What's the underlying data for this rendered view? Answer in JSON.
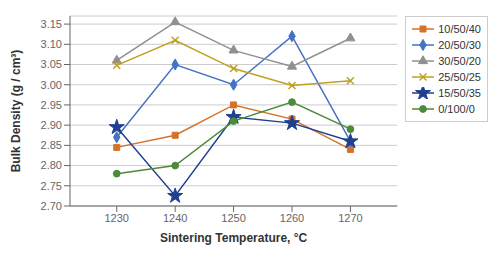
{
  "chart_data": {
    "type": "line",
    "xlabel": "Sintering Temperature, °C",
    "ylabel": "Bulk Density (g / cm³)",
    "x": [
      1230,
      1240,
      1250,
      1260,
      1270
    ],
    "series": [
      {
        "name": "10/50/40",
        "color": "#D4722A",
        "marker": "square",
        "values": [
          2.845,
          2.875,
          2.95,
          2.915,
          2.84
        ]
      },
      {
        "name": "20/50/30",
        "color": "#4472C4",
        "marker": "diamond",
        "values": [
          2.87,
          3.05,
          3.0,
          3.12,
          2.86
        ]
      },
      {
        "name": "30/50/20",
        "color": "#909090",
        "marker": "triangle",
        "values": [
          3.06,
          3.155,
          3.085,
          3.045,
          3.115
        ]
      },
      {
        "name": "25/50/25",
        "color": "#BFA020",
        "marker": "x",
        "values": [
          3.048,
          3.11,
          3.04,
          2.998,
          3.01
        ]
      },
      {
        "name": "15/50/35",
        "color": "#1F3F8F",
        "marker": "star",
        "values": [
          2.895,
          2.725,
          2.92,
          2.905,
          2.86
        ]
      },
      {
        "name": "0/100/0",
        "color": "#4D8A3A",
        "marker": "circle",
        "values": [
          2.78,
          2.8,
          2.91,
          2.957,
          2.89
        ]
      }
    ],
    "xlim": [
      1222,
      1278
    ],
    "xticks": [
      1230,
      1240,
      1250,
      1260,
      1270
    ],
    "ylim": [
      2.7,
      3.17
    ],
    "yticks": [
      {
        "value": 2.7,
        "label": "2.70"
      },
      2.75,
      {
        "value": 2.8,
        "label": "2.80"
      },
      2.85,
      {
        "value": 2.9,
        "label": "2.90"
      },
      2.95,
      {
        "value": 3.0,
        "label": "3.00"
      },
      3.05,
      {
        "value": 3.1,
        "label": "3.10"
      },
      3.15
    ],
    "grid": true,
    "legend": "right"
  }
}
